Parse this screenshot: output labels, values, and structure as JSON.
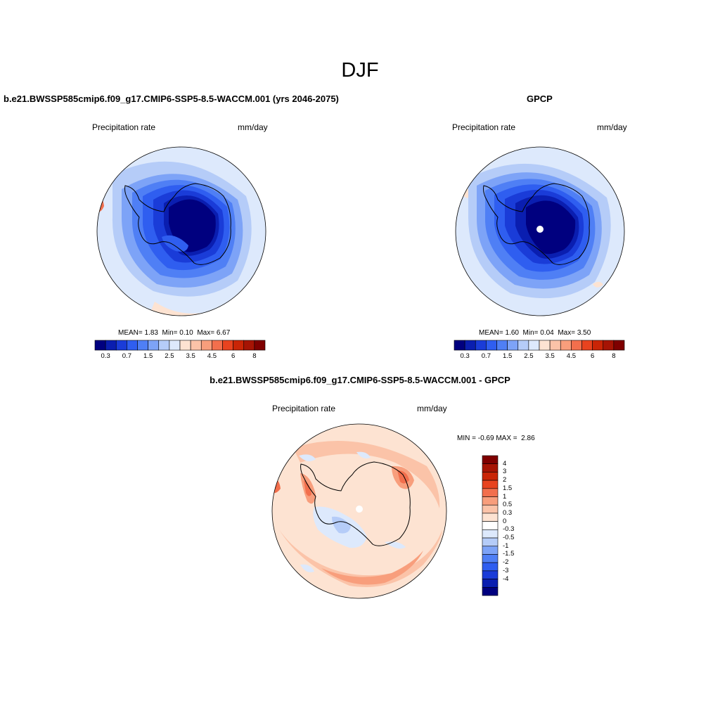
{
  "title": "DJF",
  "colors": {
    "abs_scale": [
      "#00007f",
      "#0a1eb0",
      "#1a3cd8",
      "#2f5ef0",
      "#4f7ff5",
      "#7da3f7",
      "#b5ccf8",
      "#dde9fc",
      "#fde3d2",
      "#fbc3a8",
      "#f89e7c",
      "#f26f4d",
      "#e8431f",
      "#c92506",
      "#a61404",
      "#7f0000"
    ],
    "diff_scale": [
      "#00007f",
      "#0a1eb0",
      "#1a3cd8",
      "#2f5ef0",
      "#4f7ff5",
      "#7da3f7",
      "#b5ccf8",
      "#dde9fc",
      "#ffffff",
      "#fde3d2",
      "#fbc3a8",
      "#f89e7c",
      "#f26f4d",
      "#e8431f",
      "#c92506",
      "#a61404",
      "#7f0000"
    ]
  },
  "panels": {
    "model": {
      "title": "b.e21.BWSSP585cmip6.f09_g17.CMIP6-SSP5-8.5-WACCM.001 (yrs 2046-2075)",
      "variable": "Precipitation rate",
      "units": "mm/day",
      "stats": {
        "mean_label": "MEAN=",
        "mean": "1.83",
        "min_label": "Min=",
        "min": "0.10",
        "max_label": "Max=",
        "max": "6.67"
      },
      "colorbar_labels": [
        "0.3",
        "0.7",
        "1.5",
        "2.5",
        "3.5",
        "4.5",
        "6",
        "8"
      ]
    },
    "obs": {
      "title": "GPCP",
      "variable": "Precipitation rate",
      "units": "mm/day",
      "stats": {
        "mean_label": "MEAN=",
        "mean": "1.60",
        "min_label": "Min=",
        "min": "0.04",
        "max_label": "Max=",
        "max": "3.50"
      },
      "colorbar_labels": [
        "0.3",
        "0.7",
        "1.5",
        "2.5",
        "3.5",
        "4.5",
        "6",
        "8"
      ]
    },
    "diff": {
      "title": "b.e21.BWSSP585cmip6.f09_g17.CMIP6-SSP5-8.5-WACCM.001 - GPCP",
      "variable": "Precipitation rate",
      "units": "mm/day",
      "stats": {
        "min_label": "MIN =",
        "min": "-0.69",
        "max_label": "MAX =",
        "max": "2.86"
      },
      "colorbar_labels": [
        "4",
        "3",
        "2",
        "1.5",
        "1",
        "0.5",
        "0.3",
        "0",
        "-0.3",
        "-0.5",
        "-1",
        "-1.5",
        "-2",
        "-3",
        "-4"
      ]
    }
  }
}
